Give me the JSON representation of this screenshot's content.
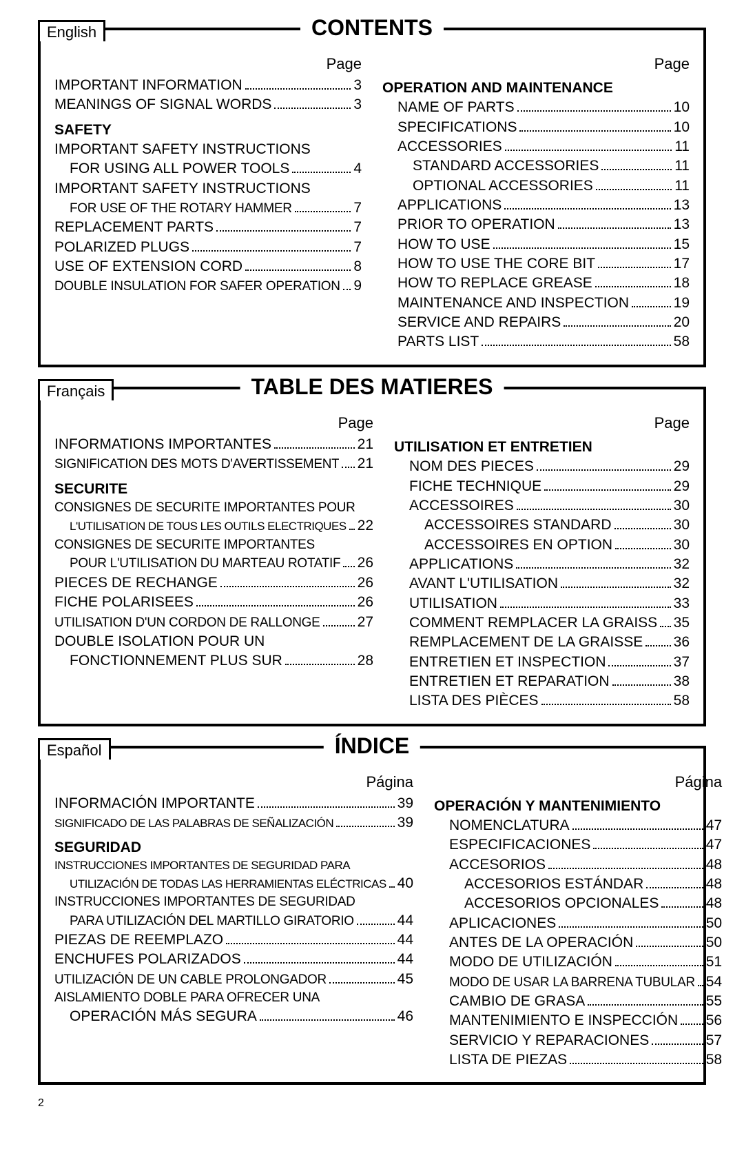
{
  "page_number": "2",
  "sections": [
    {
      "lang": "English",
      "title": "CONTENTS",
      "page_label": "Page",
      "col1": [
        {
          "type": "item",
          "label": "IMPORTANT INFORMATION",
          "page": "3",
          "indent": 0
        },
        {
          "type": "item",
          "label": "MEANINGS OF SIGNAL WORDS",
          "page": "3",
          "indent": 0
        },
        {
          "type": "heading",
          "label": "SAFETY"
        },
        {
          "type": "wrap",
          "label": "IMPORTANT SAFETY INSTRUCTIONS",
          "indent": 0
        },
        {
          "type": "item",
          "label": "FOR USING ALL POWER TOOLS",
          "page": "4",
          "indent": 1
        },
        {
          "type": "wrap",
          "label": "IMPORTANT SAFETY INSTRUCTIONS",
          "indent": 0
        },
        {
          "type": "item",
          "label": "FOR USE OF THE ROTARY HAMMER",
          "page": "7",
          "indent": 1,
          "cond": true
        },
        {
          "type": "item",
          "label": "REPLACEMENT PARTS",
          "page": "7",
          "indent": 0
        },
        {
          "type": "item",
          "label": "POLARIZED PLUGS",
          "page": "7",
          "indent": 0
        },
        {
          "type": "item",
          "label": "USE OF EXTENSION CORD",
          "page": "8",
          "indent": 0
        },
        {
          "type": "item",
          "label": "DOUBLE INSULATION FOR SAFER OPERATION",
          "page": "9",
          "indent": 0,
          "cond": true
        }
      ],
      "col2": [
        {
          "type": "heading",
          "label": "OPERATION AND MAINTENANCE"
        },
        {
          "type": "item",
          "label": "NAME OF PARTS",
          "page": "10",
          "indent": 1
        },
        {
          "type": "item",
          "label": "SPECIFICATIONS",
          "page": "10",
          "indent": 1
        },
        {
          "type": "item",
          "label": "ACCESSORIES",
          "page": "11",
          "indent": 1
        },
        {
          "type": "item",
          "label": "STANDARD ACCESSORIES",
          "page": "11",
          "indent": 2
        },
        {
          "type": "item",
          "label": "OPTIONAL ACCESSORIES",
          "page": "11",
          "indent": 2
        },
        {
          "type": "item",
          "label": "APPLICATIONS",
          "page": "13",
          "indent": 1
        },
        {
          "type": "item",
          "label": "PRIOR TO OPERATION",
          "page": "13",
          "indent": 1
        },
        {
          "type": "item",
          "label": "HOW TO USE",
          "page": "15",
          "indent": 1
        },
        {
          "type": "item",
          "label": "HOW TO USE THE CORE BIT",
          "page": "17",
          "indent": 1
        },
        {
          "type": "item",
          "label": "HOW TO REPLACE GREASE",
          "page": "18",
          "indent": 1
        },
        {
          "type": "item",
          "label": "MAINTENANCE AND INSPECTION",
          "page": "19",
          "indent": 1
        },
        {
          "type": "item",
          "label": "SERVICE AND REPAIRS",
          "page": "20",
          "indent": 1
        },
        {
          "type": "item",
          "label": "PARTS LIST",
          "page": "58",
          "indent": 1
        }
      ]
    },
    {
      "lang": "Français",
      "title": "TABLE DES MATIERES",
      "page_label": "Page",
      "col1": [
        {
          "type": "item",
          "label": "INFORMATIONS IMPORTANTES",
          "page": "21",
          "indent": 0
        },
        {
          "type": "item",
          "label": "SIGNIFICATION DES MOTS D'AVERTISSEMENT",
          "page": "21",
          "indent": 0,
          "cond": true
        },
        {
          "type": "heading",
          "label": "SECURITE"
        },
        {
          "type": "wrap",
          "label": "CONSIGNES DE SECURITE IMPORTANTES POUR",
          "indent": 0,
          "cond": true
        },
        {
          "type": "item",
          "label": "L'UTILISATION DE TOUS LES OUTILS ELECTRIQUES",
          "page": "22",
          "indent": 1,
          "cond2": true
        },
        {
          "type": "wrap",
          "label": "CONSIGNES DE SECURITE IMPORTANTES",
          "indent": 0,
          "cond": true
        },
        {
          "type": "item",
          "label": "POUR L'UTILISATION DU MARTEAU ROTATIF",
          "page": "26",
          "indent": 1,
          "cond": true
        },
        {
          "type": "item",
          "label": "PIECES DE RECHANGE",
          "page": "26",
          "indent": 0
        },
        {
          "type": "item",
          "label": "FICHE POLARISEES",
          "page": "26",
          "indent": 0
        },
        {
          "type": "item",
          "label": "UTILISATION D'UN CORDON DE RALLONGE",
          "page": "27",
          "indent": 0,
          "cond": true
        },
        {
          "type": "wrap",
          "label": "DOUBLE ISOLATION POUR UN",
          "indent": 0
        },
        {
          "type": "item",
          "label": "FONCTIONNEMENT PLUS SUR",
          "page": "28",
          "indent": 1
        }
      ],
      "col2": [
        {
          "type": "heading",
          "label": "UTILISATION ET ENTRETIEN"
        },
        {
          "type": "item",
          "label": "NOM DES PIECES",
          "page": "29",
          "indent": 1
        },
        {
          "type": "item",
          "label": "FICHE TECHNIQUE",
          "page": "29",
          "indent": 1
        },
        {
          "type": "item",
          "label": "ACCESSOIRES",
          "page": "30",
          "indent": 1
        },
        {
          "type": "item",
          "label": "ACCESSOIRES STANDARD",
          "page": "30",
          "indent": 2
        },
        {
          "type": "item",
          "label": "ACCESSOIRES EN OPTION",
          "page": "30",
          "indent": 2
        },
        {
          "type": "item",
          "label": "APPLICATIONS",
          "page": "32",
          "indent": 1
        },
        {
          "type": "item",
          "label": "AVANT L'UTILISATION",
          "page": "32",
          "indent": 1
        },
        {
          "type": "item",
          "label": "UTILISATION",
          "page": "33",
          "indent": 1
        },
        {
          "type": "item",
          "label": "COMMENT REMPLACER LA GRAISS",
          "page": "35",
          "indent": 1
        },
        {
          "type": "item",
          "label": "REMPLACEMENT DE LA GRAISSE",
          "page": "36",
          "indent": 1
        },
        {
          "type": "item",
          "label": "ENTRETIEN ET INSPECTION",
          "page": "37",
          "indent": 1
        },
        {
          "type": "item",
          "label": "ENTRETIEN ET REPARATION",
          "page": "38",
          "indent": 1
        },
        {
          "type": "item",
          "label": "LISTA DES PIÈCES",
          "page": "58",
          "indent": 1
        }
      ]
    },
    {
      "lang": "Español",
      "title": "ÍNDICE",
      "page_label": "Página",
      "col1": [
        {
          "type": "item",
          "label": "INFORMACIÓN IMPORTANTE",
          "page": "39",
          "indent": 0
        },
        {
          "type": "item",
          "label": "SIGNIFICADO DE LAS PALABRAS DE SEÑALIZACIÓN",
          "page": "39",
          "indent": 0,
          "cond2": true
        },
        {
          "type": "heading",
          "label": "SEGURIDAD"
        },
        {
          "type": "wrap",
          "label": "INSTRUCCIONES IMPORTANTES DE SEGURIDAD PARA",
          "indent": 0,
          "cond2": true
        },
        {
          "type": "item",
          "label": "UTILIZACIÓN DE TODAS LAS HERRAMIENTAS ELÉCTRICAS",
          "page": "40",
          "indent": 1,
          "cond2": true
        },
        {
          "type": "wrap",
          "label": "INSTRUCCIONES IMPORTANTES DE SEGURIDAD",
          "indent": 0,
          "cond": true
        },
        {
          "type": "item",
          "label": "PARA UTILIZACIÓN DEL MARTILLO GIRATORIO",
          "page": "44",
          "indent": 1,
          "cond": true
        },
        {
          "type": "item",
          "label": "PIEZAS DE REEMPLAZO",
          "page": "44",
          "indent": 0
        },
        {
          "type": "item",
          "label": "ENCHUFES POLARIZADOS",
          "page": "44",
          "indent": 0
        },
        {
          "type": "item",
          "label": "UTILIZACIÓN DE UN CABLE PROLONGADOR",
          "page": "45",
          "indent": 0,
          "cond": true
        },
        {
          "type": "wrap",
          "label": "AISLAMIENTO DOBLE PARA OFRECER UNA",
          "indent": 0,
          "cond": true
        },
        {
          "type": "item",
          "label": "OPERACIÓN MÁS SEGURA",
          "page": "46",
          "indent": 1
        }
      ],
      "col2": [
        {
          "type": "heading",
          "label": "OPERACIÓN Y MANTENIMIENTO"
        },
        {
          "type": "item",
          "label": "NOMENCLATURA",
          "page": "47",
          "indent": 1
        },
        {
          "type": "item",
          "label": "ESPECIFICACIONES",
          "page": "47",
          "indent": 1
        },
        {
          "type": "item",
          "label": "ACCESORIOS",
          "page": "48",
          "indent": 1
        },
        {
          "type": "item",
          "label": "ACCESORIOS ESTÁNDAR",
          "page": "48",
          "indent": 2
        },
        {
          "type": "item",
          "label": "ACCESORIOS OPCIONALES",
          "page": "48",
          "indent": 2
        },
        {
          "type": "item",
          "label": "APLICACIONES",
          "page": "50",
          "indent": 1
        },
        {
          "type": "item",
          "label": "ANTES DE LA OPERACIÓN",
          "page": "50",
          "indent": 1
        },
        {
          "type": "item",
          "label": "MODO DE UTILIZACIÓN",
          "page": "51",
          "indent": 1
        },
        {
          "type": "item",
          "label": "MODO DE USAR LA BARRENA TUBULAR",
          "page": "54",
          "indent": 1,
          "cond": true
        },
        {
          "type": "item",
          "label": "CAMBIO DE GRASA",
          "page": "55",
          "indent": 1
        },
        {
          "type": "item",
          "label": "MANTENIMIENTO E INSPECCIÓN",
          "page": "56",
          "indent": 1
        },
        {
          "type": "item",
          "label": "SERVICIO Y REPARACIONES",
          "page": "57",
          "indent": 1
        },
        {
          "type": "item",
          "label": "LISTA DE PIEZAS",
          "page": "58",
          "indent": 1
        }
      ]
    }
  ]
}
